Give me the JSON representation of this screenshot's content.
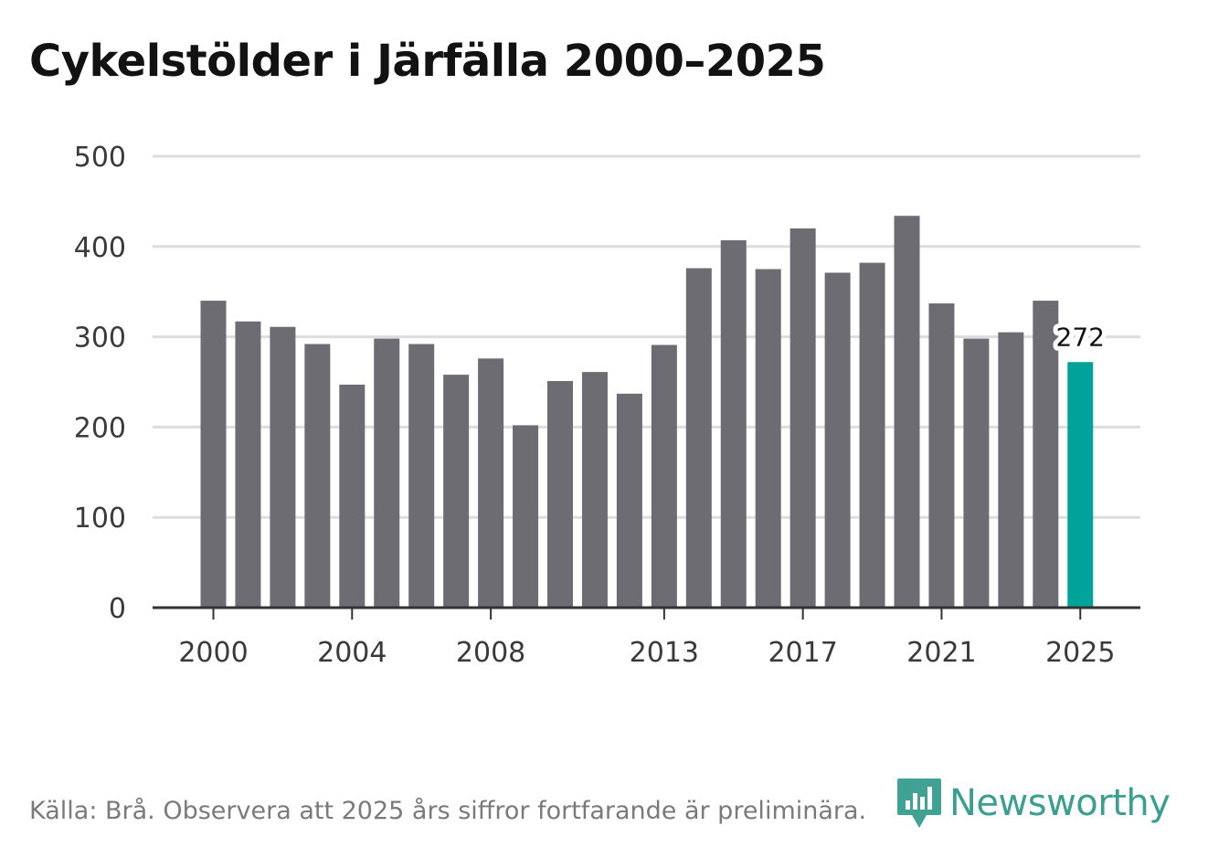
{
  "title": "Cykelstölder i Järfälla 2000–2025",
  "footer": {
    "source": "Källa: Brå. Observera att 2025 års siffror fortfarande är preliminära."
  },
  "brand": {
    "name": "Newsworthy"
  },
  "colors": {
    "bar": "#6d6c72",
    "highlight": "#00a39a",
    "grid": "#dddddd",
    "axis": "#333333",
    "brand": "#2f9a8c"
  },
  "chart_data": {
    "type": "bar",
    "title": "Cykelstölder i Järfälla 2000–2025",
    "xlabel": "",
    "ylabel": "",
    "ylim": [
      0,
      500
    ],
    "yticks": [
      0,
      100,
      200,
      300,
      400,
      500
    ],
    "grid": true,
    "categories": [
      "2000",
      "2001",
      "2002",
      "2003",
      "2004",
      "2005",
      "2006",
      "2007",
      "2008",
      "2009",
      "2010",
      "2011",
      "2012",
      "2013",
      "2014",
      "2015",
      "2016",
      "2017",
      "2018",
      "2019",
      "2020",
      "2021",
      "2022",
      "2023",
      "2024",
      "2025"
    ],
    "values": [
      340,
      317,
      311,
      292,
      247,
      298,
      292,
      258,
      276,
      202,
      251,
      261,
      237,
      291,
      376,
      407,
      375,
      420,
      371,
      382,
      434,
      337,
      298,
      305,
      340,
      272
    ],
    "xtick_labels": [
      "2000",
      "2004",
      "2008",
      "2013",
      "2017",
      "2021",
      "2025"
    ],
    "highlight": {
      "category": "2025",
      "label": "272"
    }
  }
}
